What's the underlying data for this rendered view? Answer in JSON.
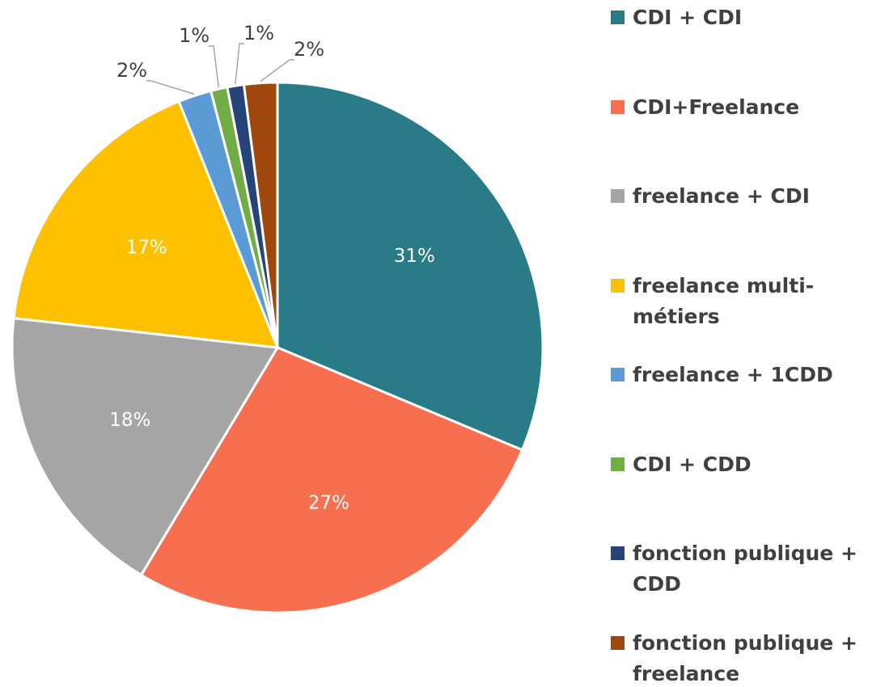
{
  "chart_data": {
    "type": "pie",
    "categories": [
      "CDI + CDI",
      "CDI+Freelance",
      "freelance + CDI",
      "freelance multi-métiers",
      "freelance + 1CDD",
      "CDI + CDD",
      "fonction publique + CDD",
      "fonction publique + freelance"
    ],
    "values": [
      31,
      27,
      18,
      17,
      2,
      1,
      1,
      2
    ],
    "value_labels": [
      "31%",
      "27%",
      "18%",
      "17%",
      "2%",
      "1%",
      "1%",
      "2%"
    ],
    "colors": [
      "#2a7b88",
      "#f76f4f",
      "#a5a5a5",
      "#ffc000",
      "#5b9bd5",
      "#70ad47",
      "#264478",
      "#9e480e"
    ],
    "legend": "right"
  }
}
